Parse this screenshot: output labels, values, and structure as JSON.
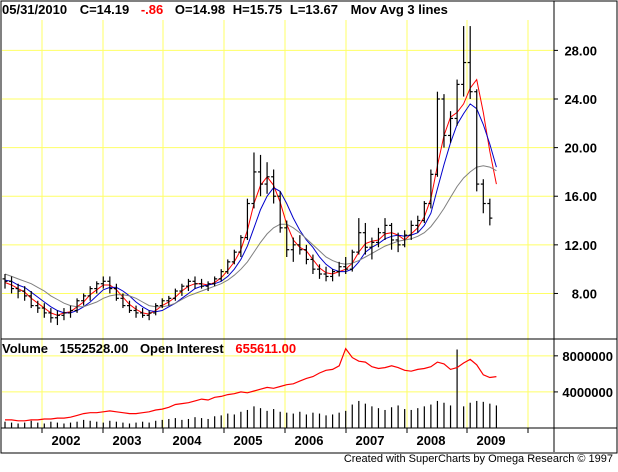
{
  "header": {
    "date": "05/31/2010",
    "close_label": "C=14.19",
    "change": "-.86",
    "open_label": "O=14.98",
    "high_label": "H=15.75",
    "low_label": "L=13.67",
    "study": "Mov Avg 3 lines"
  },
  "volume_header": {
    "volume_label": "Volume",
    "volume_value": "1552528.00",
    "oi_label": "Open Interest",
    "oi_value": "655611.00"
  },
  "footer": {
    "credit": "Created with SuperCharts by Omega Research © 1997"
  },
  "colors": {
    "grid": "#ffff66",
    "price_bars": "#000000",
    "ma_fast": "#ff0000",
    "ma_mid": "#0000cc",
    "ma_slow": "#808080",
    "open_interest": "#ff0000",
    "volume": "#000000",
    "change_text": "#ff0000",
    "oi_value_text": "#ff0000"
  },
  "chart_data": [
    {
      "type": "line",
      "title": "",
      "x_tick_labels": [
        "2002",
        "2003",
        "2004",
        "2005",
        "2006",
        "2007",
        "2008",
        "2009"
      ],
      "y_tick_labels": [
        "8.00",
        "12.00",
        "16.00",
        "20.00",
        "24.00",
        "28.00"
      ],
      "ylim": [
        4.5,
        30.5
      ],
      "grid": true,
      "x_frac": [
        0,
        0.012,
        0.024,
        0.036,
        0.048,
        0.06,
        0.072,
        0.084,
        0.096,
        0.108,
        0.12,
        0.132,
        0.144,
        0.156,
        0.168,
        0.18,
        0.192,
        0.204,
        0.216,
        0.228,
        0.24,
        0.252,
        0.264,
        0.276,
        0.288,
        0.3,
        0.312,
        0.324,
        0.336,
        0.348,
        0.36,
        0.372,
        0.384,
        0.396,
        0.408,
        0.42,
        0.432,
        0.444,
        0.456,
        0.468,
        0.48,
        0.492,
        0.504,
        0.516,
        0.528,
        0.54,
        0.552,
        0.564,
        0.576,
        0.588,
        0.6,
        0.612,
        0.624,
        0.636,
        0.648,
        0.66,
        0.672,
        0.684,
        0.696,
        0.708,
        0.72,
        0.732,
        0.744,
        0.756,
        0.768,
        0.78,
        0.792,
        0.804,
        0.816,
        0.828,
        0.84,
        0.852,
        0.864,
        0.876,
        0.888,
        0.9,
        0.912,
        0.924,
        0.936,
        0.948,
        0.96,
        0.972,
        0.984,
        0.996
      ],
      "ohlc": [
        [
          9.2,
          9.6,
          8.4,
          9.0
        ],
        [
          9.0,
          9.4,
          8.0,
          8.4
        ],
        [
          8.4,
          8.8,
          7.6,
          8.2
        ],
        [
          8.2,
          8.6,
          7.4,
          7.8
        ],
        [
          7.8,
          8.2,
          6.8,
          7.0
        ],
        [
          7.0,
          7.4,
          6.4,
          6.8
        ],
        [
          6.8,
          7.2,
          6.0,
          6.4
        ],
        [
          6.4,
          6.8,
          5.6,
          6.0
        ],
        [
          6.0,
          6.6,
          5.4,
          6.2
        ],
        [
          6.2,
          6.8,
          5.8,
          6.4
        ],
        [
          6.4,
          7.0,
          6.0,
          6.6
        ],
        [
          6.6,
          7.6,
          6.4,
          7.4
        ],
        [
          7.4,
          8.0,
          7.0,
          7.8
        ],
        [
          7.8,
          8.6,
          7.4,
          8.4
        ],
        [
          8.4,
          9.0,
          8.0,
          8.8
        ],
        [
          8.8,
          9.4,
          8.4,
          9.0
        ],
        [
          9.0,
          9.4,
          8.0,
          8.4
        ],
        [
          8.4,
          8.8,
          7.4,
          7.6
        ],
        [
          7.6,
          8.0,
          6.8,
          7.0
        ],
        [
          7.0,
          7.4,
          6.4,
          6.6
        ],
        [
          6.6,
          7.0,
          6.0,
          6.4
        ],
        [
          6.4,
          6.8,
          6.0,
          6.2
        ],
        [
          6.2,
          6.6,
          5.8,
          6.4
        ],
        [
          6.4,
          7.2,
          6.2,
          7.0
        ],
        [
          7.0,
          7.6,
          6.8,
          7.4
        ],
        [
          7.4,
          7.8,
          7.0,
          7.6
        ],
        [
          7.6,
          8.4,
          7.4,
          8.2
        ],
        [
          8.2,
          8.8,
          7.8,
          8.6
        ],
        [
          8.6,
          9.2,
          8.2,
          9.0
        ],
        [
          9.0,
          9.4,
          8.4,
          8.8
        ],
        [
          8.8,
          9.2,
          8.4,
          8.6
        ],
        [
          8.6,
          9.0,
          8.2,
          8.8
        ],
        [
          8.8,
          9.4,
          8.6,
          9.2
        ],
        [
          9.2,
          10.0,
          9.0,
          9.8
        ],
        [
          9.8,
          10.8,
          9.6,
          10.6
        ],
        [
          10.6,
          11.6,
          10.4,
          11.4
        ],
        [
          11.4,
          12.8,
          11.0,
          12.6
        ],
        [
          12.6,
          15.8,
          12.4,
          15.4
        ],
        [
          15.4,
          19.6,
          15.0,
          18.0
        ],
        [
          18.0,
          19.4,
          16.0,
          17.0
        ],
        [
          17.0,
          18.8,
          16.2,
          17.6
        ],
        [
          17.6,
          18.2,
          15.4,
          16.0
        ],
        [
          16.0,
          16.4,
          13.0,
          13.4
        ],
        [
          13.4,
          14.0,
          11.0,
          11.6
        ],
        [
          11.6,
          12.6,
          10.6,
          12.0
        ],
        [
          12.0,
          12.8,
          11.2,
          11.6
        ],
        [
          11.6,
          12.0,
          10.4,
          10.8
        ],
        [
          10.8,
          11.2,
          9.6,
          10.0
        ],
        [
          10.0,
          10.4,
          9.2,
          9.6
        ],
        [
          9.6,
          10.2,
          9.0,
          9.4
        ],
        [
          9.4,
          10.0,
          9.0,
          9.8
        ],
        [
          9.8,
          10.6,
          9.4,
          10.2
        ],
        [
          10.2,
          11.0,
          9.6,
          10.0
        ],
        [
          10.0,
          11.6,
          9.8,
          11.4
        ],
        [
          11.4,
          14.2,
          11.2,
          13.0
        ],
        [
          13.0,
          13.8,
          11.2,
          11.8
        ],
        [
          11.8,
          12.6,
          10.8,
          12.2
        ],
        [
          12.2,
          13.4,
          11.8,
          13.0
        ],
        [
          13.0,
          14.2,
          12.4,
          13.6
        ],
        [
          13.6,
          13.8,
          11.6,
          12.4
        ],
        [
          12.4,
          13.0,
          11.4,
          12.0
        ],
        [
          12.0,
          13.2,
          11.8,
          12.8
        ],
        [
          12.8,
          14.0,
          12.4,
          13.6
        ],
        [
          13.6,
          14.4,
          13.0,
          14.0
        ],
        [
          14.0,
          15.6,
          13.8,
          15.4
        ],
        [
          15.4,
          18.2,
          15.0,
          17.8
        ],
        [
          17.8,
          24.6,
          17.6,
          24.0
        ],
        [
          24.0,
          24.4,
          20.0,
          21.0
        ],
        [
          21.0,
          23.0,
          20.4,
          22.4
        ],
        [
          22.4,
          25.6,
          21.8,
          25.2
        ],
        [
          25.2,
          30.0,
          24.2,
          27.0
        ],
        [
          27.0,
          30.0,
          24.0,
          24.6
        ],
        [
          24.6,
          24.8,
          16.4,
          17.0
        ],
        [
          17.0,
          17.4,
          14.6,
          15.4
        ],
        [
          15.4,
          15.8,
          13.6,
          14.2
        ]
      ],
      "series": [
        {
          "name": "",
          "values": [
            8.9,
            8.7,
            8.4,
            8.1,
            7.6,
            7.2,
            6.8,
            6.4,
            6.2,
            6.4,
            6.5,
            6.9,
            7.3,
            7.9,
            8.3,
            8.7,
            8.7,
            8.3,
            7.7,
            7.1,
            6.7,
            6.4,
            6.3,
            6.6,
            7.0,
            7.3,
            7.7,
            8.2,
            8.6,
            8.8,
            8.8,
            8.7,
            8.9,
            9.3,
            9.9,
            10.6,
            11.6,
            13.2,
            15.4,
            16.9,
            17.6,
            16.9,
            15.5,
            13.7,
            12.4,
            11.8,
            11.5,
            10.8,
            10.1,
            9.7,
            9.6,
            9.8,
            10.0,
            10.5,
            11.4,
            12.1,
            12.3,
            12.4,
            12.9,
            13.0,
            12.8,
            12.4,
            12.9,
            13.4,
            14.3,
            15.8,
            18.5,
            21.0,
            22.5,
            22.9,
            23.6,
            24.9,
            25.6,
            22.9,
            19.7,
            17.0
          ]
        },
        {
          "name": "",
          "values": [
            9.1,
            9.0,
            8.7,
            8.5,
            8.1,
            7.7,
            7.3,
            6.9,
            6.6,
            6.4,
            6.4,
            6.6,
            6.9,
            7.3,
            7.8,
            8.3,
            8.5,
            8.5,
            8.2,
            7.8,
            7.3,
            6.9,
            6.6,
            6.5,
            6.6,
            6.9,
            7.2,
            7.6,
            8.0,
            8.4,
            8.6,
            8.7,
            8.8,
            9.0,
            9.4,
            10.0,
            10.8,
            11.9,
            13.4,
            14.9,
            16.0,
            16.7,
            16.4,
            15.4,
            14.2,
            13.2,
            12.4,
            11.8,
            11.0,
            10.4,
            10.0,
            9.8,
            9.8,
            10.0,
            10.6,
            11.4,
            11.8,
            12.1,
            12.5,
            12.7,
            12.8,
            12.7,
            12.8,
            13.0,
            13.6,
            14.6,
            16.6,
            18.6,
            20.4,
            21.9,
            22.8,
            23.6,
            23.2,
            21.9,
            20.3,
            18.4
          ]
        },
        {
          "name": "",
          "values": [
            9.6,
            9.4,
            9.2,
            9.0,
            8.8,
            8.5,
            8.2,
            7.8,
            7.5,
            7.2,
            7.0,
            6.9,
            6.9,
            7.1,
            7.3,
            7.6,
            7.8,
            7.9,
            7.9,
            7.8,
            7.6,
            7.3,
            7.0,
            6.9,
            6.9,
            7.0,
            7.2,
            7.5,
            7.8,
            8.0,
            8.2,
            8.4,
            8.6,
            8.8,
            9.1,
            9.5,
            10.0,
            10.6,
            11.4,
            12.2,
            12.9,
            13.4,
            13.7,
            13.7,
            13.4,
            13.0,
            12.5,
            12.0,
            11.5,
            11.0,
            10.7,
            10.5,
            10.4,
            10.5,
            10.7,
            11.0,
            11.3,
            11.6,
            11.9,
            12.1,
            12.3,
            12.4,
            12.5,
            12.7,
            13.0,
            13.5,
            14.2,
            15.0,
            15.9,
            16.8,
            17.5,
            18.0,
            18.4,
            18.5,
            18.4,
            18.1
          ]
        }
      ]
    },
    {
      "type": "bar",
      "title": "",
      "y_tick_labels": [
        "4000000",
        "8000000"
      ],
      "ylim": [
        0,
        9200000
      ],
      "x_frac": [
        0,
        0.012,
        0.024,
        0.036,
        0.048,
        0.06,
        0.072,
        0.084,
        0.096,
        0.108,
        0.12,
        0.132,
        0.144,
        0.156,
        0.168,
        0.18,
        0.192,
        0.204,
        0.216,
        0.228,
        0.24,
        0.252,
        0.264,
        0.276,
        0.288,
        0.3,
        0.312,
        0.324,
        0.336,
        0.348,
        0.36,
        0.372,
        0.384,
        0.396,
        0.408,
        0.42,
        0.432,
        0.444,
        0.456,
        0.468,
        0.48,
        0.492,
        0.504,
        0.516,
        0.528,
        0.54,
        0.552,
        0.564,
        0.576,
        0.588,
        0.6,
        0.612,
        0.624,
        0.636,
        0.648,
        0.66,
        0.672,
        0.684,
        0.696,
        0.708,
        0.72,
        0.732,
        0.744,
        0.756,
        0.768,
        0.78,
        0.792,
        0.804,
        0.816,
        0.828,
        0.84,
        0.852,
        0.864,
        0.876,
        0.888,
        0.9,
        0.912,
        0.924,
        0.936,
        0.948,
        0.96,
        0.972,
        0.984,
        0.996
      ],
      "series": [
        {
          "name": "Volume",
          "values": [
            700000,
            600000,
            500000,
            600000,
            800000,
            600000,
            500000,
            700000,
            600000,
            500000,
            600000,
            700000,
            900000,
            800000,
            700000,
            600000,
            800000,
            700000,
            600000,
            500000,
            600000,
            700000,
            600000,
            800000,
            900000,
            1000000,
            1100000,
            900000,
            1000000,
            1200000,
            1100000,
            1000000,
            1300000,
            1400000,
            1600000,
            1500000,
            1800000,
            2000000,
            2400000,
            2200000,
            1900000,
            2100000,
            1800000,
            1700000,
            1600000,
            1800000,
            1500000,
            1700000,
            1600000,
            1400000,
            1500000,
            1700000,
            1900000,
            2600000,
            3000000,
            2700000,
            2400000,
            2200000,
            2000000,
            2300000,
            2500000,
            2100000,
            2000000,
            2200000,
            2400000,
            2600000,
            3000000,
            2800000,
            2500000,
            8700000,
            2400000,
            2800000,
            3000000,
            2900000,
            2700000,
            2500000
          ]
        },
        {
          "name": "Open Interest",
          "values": [
            900000,
            900000,
            800000,
            800000,
            900000,
            900000,
            1000000,
            1000000,
            1100000,
            1100000,
            1200000,
            1400000,
            1600000,
            1700000,
            1700000,
            1800000,
            1900000,
            1800000,
            1700000,
            1600000,
            1600000,
            1700000,
            1800000,
            2000000,
            2100000,
            2300000,
            2600000,
            2700000,
            2800000,
            3000000,
            3200000,
            3100000,
            3400000,
            3500000,
            3700000,
            3800000,
            4000000,
            3900000,
            4100000,
            4300000,
            4500000,
            4400000,
            4600000,
            4800000,
            4900000,
            5200000,
            5500000,
            5700000,
            6100000,
            6400000,
            6500000,
            6900000,
            8800000,
            7800000,
            7400000,
            7300000,
            6800000,
            6600000,
            6700000,
            6900000,
            6700000,
            6400000,
            6300000,
            6500000,
            6600000,
            6800000,
            7300000,
            7100000,
            6500000,
            6700000,
            7200000,
            7600000,
            7000000,
            5900000,
            5600000,
            5700000
          ]
        }
      ]
    }
  ]
}
